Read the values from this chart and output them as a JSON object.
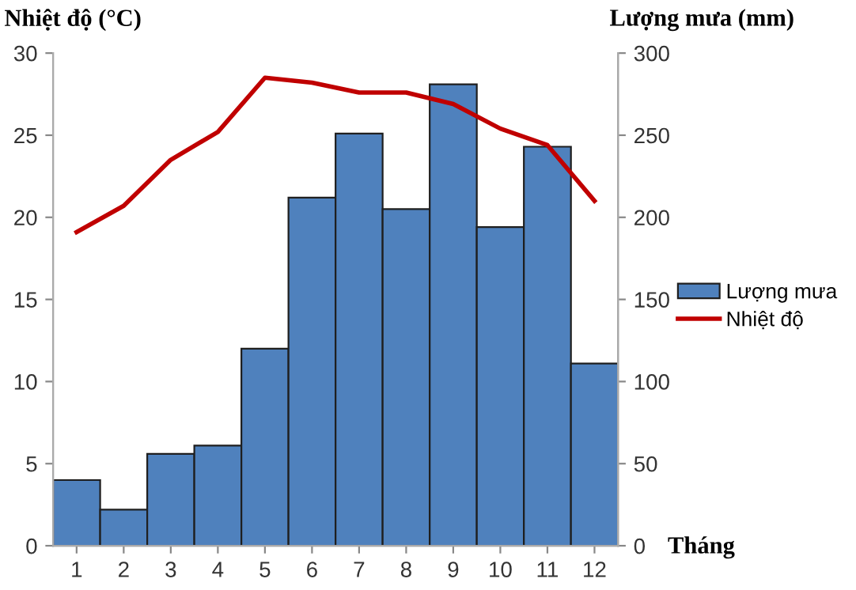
{
  "chart_data": {
    "type": "bar",
    "ylabel": "Nhiệt độ (°C)",
    "y2label": "Lượng mưa (mm)",
    "xlabel": "Tháng",
    "categories": [
      "1",
      "2",
      "3",
      "4",
      "5",
      "6",
      "7",
      "8",
      "9",
      "10",
      "11",
      "12"
    ],
    "series": [
      {
        "name": "Lượng mưa",
        "axis": "y2",
        "color": "#4f81bd",
        "values": [
          40,
          22,
          56,
          61,
          120,
          212,
          251,
          205,
          281,
          194,
          243,
          111
        ]
      },
      {
        "name": "Nhiệt độ",
        "type": "line",
        "axis": "y",
        "color": "#c00000",
        "values": [
          19.1,
          20.7,
          23.5,
          25.2,
          28.5,
          28.2,
          27.6,
          27.6,
          26.9,
          25.4,
          24.4,
          21.0
        ]
      }
    ],
    "ylim": [
      0,
      30
    ],
    "yticks": [
      0,
      5,
      10,
      15,
      20,
      25,
      30
    ],
    "y2lim": [
      0,
      300
    ],
    "y2ticks": [
      0,
      50,
      100,
      150,
      200,
      250,
      300
    ],
    "legend": "right",
    "grid": false,
    "marker": "none",
    "line_style": "solid"
  }
}
